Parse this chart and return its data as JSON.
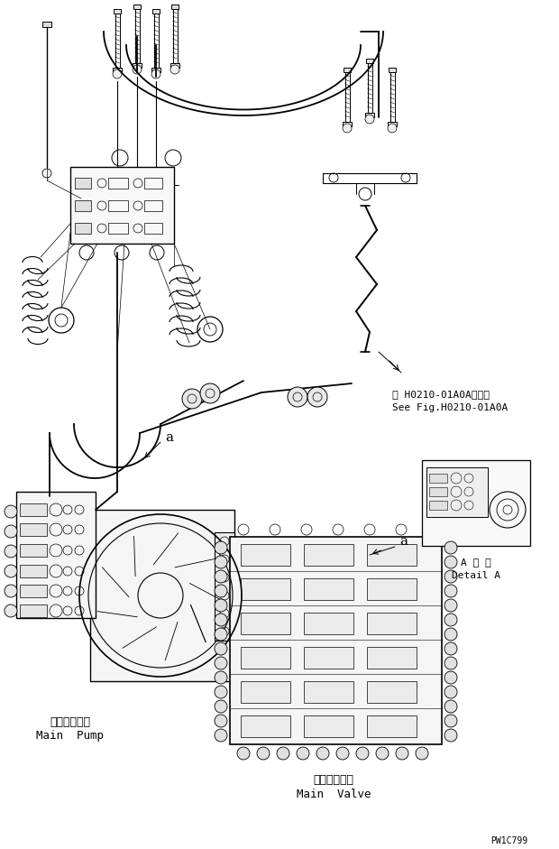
{
  "bg_color": "#ffffff",
  "line_color": "#000000",
  "figsize": [
    6.2,
    9.41
  ],
  "dpi": 100,
  "texts": {
    "main_pump_jp": "メインポンプ",
    "main_pump_en": "Main  Pump",
    "main_valve_jp": "メインバルブ",
    "main_valve_en": "Main  Valve",
    "detail_jp": "A 詳 細",
    "detail_en": "Detail A",
    "see_fig_jp": "第 H0210-01A0A図参照",
    "see_fig_en": "See Fig.H0210-01A0A",
    "label_a1": "a",
    "label_a2": "a",
    "part_code": "PW1C799"
  },
  "font_size": {
    "label_a": 11,
    "part_code": 7,
    "component_jp": 9,
    "component_en": 9,
    "detail": 8,
    "ref": 8
  }
}
